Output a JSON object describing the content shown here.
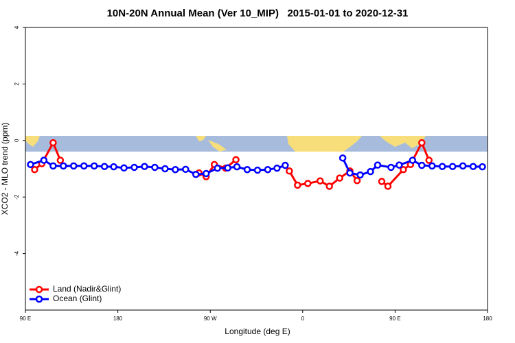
{
  "chart_data": {
    "type": "line",
    "title": "10N-20N Annual Mean (Ver 10_MIP)   2015-01-01 to 2020-12-31",
    "xlabel": "Longitude (deg E)",
    "ylabel": "XCO2 - MLO trend (ppm)",
    "xlim": [
      90,
      540
    ],
    "ylim": [
      -6,
      4
    ],
    "xticks": [
      {
        "value": 90,
        "label": "90 E"
      },
      180,
      {
        "value": 270,
        "label": "90 W"
      },
      {
        "value": 360,
        "label": "0"
      },
      {
        "value": 450,
        "label": "90 E"
      },
      {
        "value": 540,
        "label": "180"
      }
    ],
    "yticks": [
      -4,
      -2,
      0,
      2,
      4
    ],
    "legend": "bottom-left",
    "series": [
      {
        "name": "Land (Nadir&Glint)",
        "color": "#ff0000",
        "x": [
          99,
          106,
          117,
          124,
          null,
          259,
          266,
          274,
          285,
          295,
          null,
          347,
          355,
          365,
          377,
          386,
          396,
          406,
          413,
          null,
          437,
          443,
          458,
          465,
          476,
          483
        ],
        "values": [
          -1.03,
          -0.82,
          -0.08,
          -0.7,
          null,
          -1.15,
          -1.28,
          -0.85,
          -0.98,
          -0.68,
          null,
          -1.08,
          -1.58,
          -1.52,
          -1.43,
          -1.62,
          -1.33,
          -1.08,
          -1.42,
          null,
          -1.45,
          -1.62,
          -1.03,
          -0.85,
          -0.08,
          -0.7
        ]
      },
      {
        "name": "Ocean (Glint)",
        "color": "#0000ff",
        "x": [
          95,
          108,
          117,
          127,
          137,
          147,
          157,
          167,
          176,
          186,
          196,
          206,
          216,
          226,
          236,
          246,
          256,
          266,
          277,
          287,
          296,
          306,
          316,
          326,
          335,
          343,
          null,
          399,
          406,
          416,
          426,
          433,
          446,
          454,
          467,
          476,
          486,
          496,
          506,
          516,
          526,
          535
        ],
        "values": [
          -0.85,
          -0.7,
          -0.9,
          -0.9,
          -0.9,
          -0.9,
          -0.9,
          -0.92,
          -0.93,
          -0.97,
          -0.95,
          -0.92,
          -0.95,
          -1.0,
          -1.03,
          -1.02,
          -1.2,
          -1.17,
          -0.98,
          -0.97,
          -0.93,
          -1.03,
          -1.05,
          -1.03,
          -0.98,
          -0.88,
          null,
          -0.62,
          -1.15,
          -1.22,
          -1.1,
          -0.87,
          -0.95,
          -0.87,
          -0.7,
          -0.88,
          -0.9,
          -0.92,
          -0.92,
          -0.9,
          -0.92,
          -0.93
        ]
      }
    ]
  }
}
